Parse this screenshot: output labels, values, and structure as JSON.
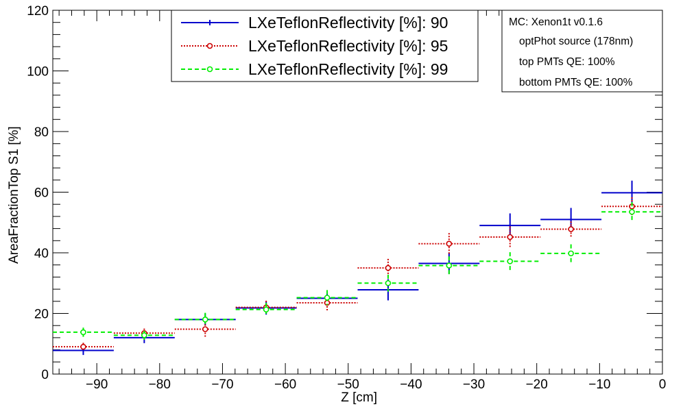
{
  "chart_data": {
    "type": "scatter",
    "title": "",
    "xlabel": "Z [cm]",
    "ylabel": "AreaFractionTop S1 [%]",
    "xlim": [
      -97,
      0
    ],
    "ylim": [
      0,
      120
    ],
    "x_ticks": [
      -90,
      -80,
      -70,
      -60,
      -50,
      -40,
      -30,
      -20,
      -10,
      0
    ],
    "y_ticks": [
      0,
      20,
      40,
      60,
      80,
      100,
      120
    ],
    "grid": false,
    "legend_position": "top-center",
    "bin_edges": [
      -97,
      -87.3,
      -77.6,
      -67.9,
      -58.2,
      -48.5,
      -38.8,
      -29.1,
      -19.4,
      -9.7,
      0
    ],
    "series": [
      {
        "name": "LXeTeflonReflectivity [%]: 90",
        "color": "#0000cc",
        "style": "solid",
        "marker": "dot",
        "values": [
          7.8,
          12.0,
          18.0,
          21.8,
          25.0,
          27.8,
          36.5,
          49.0,
          51.0,
          59.8
        ],
        "errors": [
          1.5,
          1.8,
          2.0,
          2.2,
          2.2,
          3.5,
          3.5,
          4.0,
          3.8,
          4.0
        ]
      },
      {
        "name": "LXeTeflonReflectivity [%]: 95",
        "color": "#cc0000",
        "style": "dotted",
        "marker": "circle",
        "values": [
          9.0,
          13.5,
          14.8,
          22.0,
          23.5,
          35.0,
          43.0,
          45.2,
          47.8,
          55.3
        ],
        "errors": [
          1.3,
          1.5,
          2.5,
          2.2,
          2.5,
          3.0,
          3.5,
          3.5,
          2.5,
          3.0
        ]
      },
      {
        "name": "LXeTeflonReflectivity [%]: 99",
        "color": "#00ee00",
        "style": "dashed",
        "marker": "circle",
        "values": [
          13.8,
          12.8,
          18.0,
          21.3,
          25.2,
          30.0,
          35.8,
          37.2,
          39.8,
          53.5
        ],
        "errors": [
          1.5,
          1.5,
          2.2,
          2.2,
          2.5,
          2.8,
          3.0,
          3.0,
          3.0,
          3.2
        ]
      }
    ],
    "annotations": [
      "MC: Xenon1t v0.1.6",
      "optPhot source (178nm)",
      "top PMTs QE: 100%",
      "bottom PMTs QE: 100%"
    ]
  }
}
